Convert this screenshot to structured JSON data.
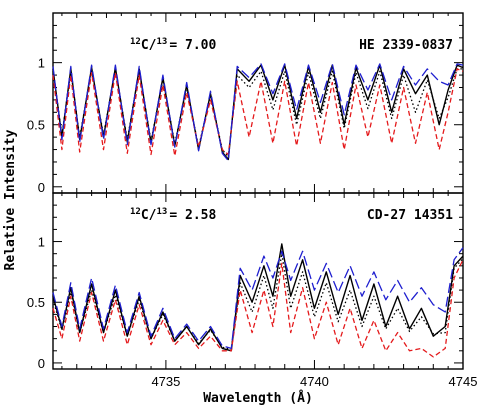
{
  "chart_data": {
    "type": "line",
    "xlabel": "Wavelength (Å)",
    "ylabel": "Relative Intensity",
    "xlim": [
      4731.2,
      4745.0
    ],
    "x_ticks": [
      4735,
      4740,
      4745
    ],
    "panels": [
      {
        "star": "HE 2339-0837",
        "ratio_text": "= 7.00",
        "ratio_prefix": "C/",
        "ratio_iso_a": "12",
        "ratio_iso_b": "13",
        "ylim": [
          -0.05,
          1.4
        ],
        "y_ticks": [
          0,
          0.5,
          1
        ],
        "y_tick_labels": [
          "0",
          "0.5",
          "1"
        ],
        "series": [
          {
            "style": "solid",
            "color": "#000000",
            "x": [
              4731.2,
              4731.5,
              4731.8,
              4732.1,
              4732.5,
              4732.9,
              4733.3,
              4733.7,
              4734.1,
              4734.5,
              4734.9,
              4735.3,
              4735.7,
              4736.1,
              4736.5,
              4736.9,
              4737.1,
              4737.4,
              4737.8,
              4738.2,
              4738.6,
              4739.0,
              4739.4,
              4739.8,
              4740.2,
              4740.6,
              4741.0,
              4741.4,
              4741.8,
              4742.2,
              4742.6,
              4743.0,
              4743.4,
              4743.8,
              4744.2,
              4744.5,
              4744.8,
              4745.0
            ],
            "y": [
              0.95,
              0.4,
              0.95,
              0.38,
              0.96,
              0.4,
              0.96,
              0.36,
              0.95,
              0.35,
              0.88,
              0.33,
              0.82,
              0.3,
              0.75,
              0.28,
              0.22,
              0.95,
              0.85,
              0.98,
              0.7,
              0.98,
              0.55,
              0.97,
              0.6,
              0.98,
              0.5,
              0.96,
              0.7,
              0.98,
              0.6,
              0.95,
              0.75,
              0.9,
              0.5,
              0.78,
              0.98,
              0.96
            ]
          },
          {
            "style": "dotted",
            "color": "#000000",
            "x": [
              4731.2,
              4731.5,
              4731.8,
              4732.1,
              4732.5,
              4732.9,
              4733.3,
              4733.7,
              4734.1,
              4734.5,
              4734.9,
              4735.3,
              4735.7,
              4736.1,
              4736.5,
              4736.9,
              4737.1,
              4737.4,
              4737.8,
              4738.2,
              4738.6,
              4739.0,
              4739.4,
              4739.8,
              4740.2,
              4740.6,
              4741.0,
              4741.4,
              4741.8,
              4742.2,
              4742.6,
              4743.0,
              4743.4,
              4743.8,
              4744.2,
              4744.5,
              4744.8,
              4745.0
            ],
            "y": [
              0.93,
              0.42,
              0.93,
              0.4,
              0.94,
              0.42,
              0.94,
              0.38,
              0.93,
              0.37,
              0.86,
              0.35,
              0.8,
              0.32,
              0.74,
              0.3,
              0.24,
              0.9,
              0.8,
              0.93,
              0.62,
              0.93,
              0.5,
              0.92,
              0.55,
              0.93,
              0.47,
              0.92,
              0.63,
              0.93,
              0.55,
              0.9,
              0.6,
              0.86,
              0.55,
              0.72,
              0.95,
              0.95
            ]
          },
          {
            "style": "dashed",
            "color": "#e41a1c",
            "x": [
              4731.2,
              4731.5,
              4731.8,
              4732.1,
              4732.5,
              4732.9,
              4733.3,
              4733.7,
              4734.1,
              4734.5,
              4734.9,
              4735.3,
              4735.7,
              4736.1,
              4736.5,
              4736.9,
              4737.1,
              4737.4,
              4737.8,
              4738.2,
              4738.6,
              4739.0,
              4739.4,
              4739.8,
              4740.2,
              4740.6,
              4741.0,
              4741.4,
              4741.8,
              4742.2,
              4742.6,
              4743.0,
              4743.4,
              4743.8,
              4744.2,
              4744.5,
              4744.8,
              4745.0
            ],
            "y": [
              0.9,
              0.3,
              0.9,
              0.28,
              0.92,
              0.3,
              0.92,
              0.27,
              0.9,
              0.26,
              0.82,
              0.25,
              0.76,
              0.32,
              0.7,
              0.3,
              0.26,
              0.85,
              0.4,
              0.85,
              0.35,
              0.85,
              0.33,
              0.84,
              0.35,
              0.84,
              0.3,
              0.82,
              0.4,
              0.82,
              0.35,
              0.8,
              0.35,
              0.76,
              0.3,
              0.6,
              0.95,
              0.93
            ]
          },
          {
            "style": "longdash",
            "color": "#1f1fcf",
            "x": [
              4731.2,
              4731.5,
              4731.8,
              4732.1,
              4732.5,
              4732.9,
              4733.3,
              4733.7,
              4734.1,
              4734.5,
              4734.9,
              4735.3,
              4735.7,
              4736.1,
              4736.5,
              4736.9,
              4737.1,
              4737.4,
              4737.8,
              4738.2,
              4738.6,
              4739.0,
              4739.4,
              4739.8,
              4740.2,
              4740.6,
              4741.0,
              4741.4,
              4741.8,
              4742.2,
              4742.6,
              4743.0,
              4743.4,
              4743.8,
              4744.2,
              4744.5,
              4744.8,
              4745.0
            ],
            "y": [
              0.97,
              0.38,
              0.97,
              0.36,
              0.98,
              0.38,
              0.98,
              0.34,
              0.97,
              0.34,
              0.9,
              0.32,
              0.84,
              0.29,
              0.77,
              0.27,
              0.21,
              0.97,
              0.88,
              0.99,
              0.75,
              0.99,
              0.62,
              0.98,
              0.68,
              0.99,
              0.58,
              0.98,
              0.78,
              0.99,
              0.7,
              0.97,
              0.82,
              0.95,
              0.85,
              0.82,
              0.99,
              0.98
            ]
          }
        ]
      },
      {
        "star": "CD-27 14351",
        "ratio_text": "= 2.58",
        "ratio_prefix": "C/",
        "ratio_iso_a": "12",
        "ratio_iso_b": "13",
        "ylim": [
          -0.05,
          1.4
        ],
        "y_ticks": [
          0,
          0.5,
          1
        ],
        "y_tick_labels": [
          "0",
          "0.5",
          "1"
        ],
        "series": [
          {
            "style": "solid",
            "color": "#000000",
            "x": [
              4731.2,
              4731.5,
              4731.8,
              4732.1,
              4732.5,
              4732.9,
              4733.3,
              4733.7,
              4734.1,
              4734.5,
              4734.9,
              4735.3,
              4735.7,
              4736.1,
              4736.5,
              4736.9,
              4737.2,
              4737.5,
              4737.9,
              4738.3,
              4738.6,
              4738.9,
              4739.2,
              4739.6,
              4740.0,
              4740.4,
              4740.8,
              4741.2,
              4741.6,
              4742.0,
              4742.4,
              4742.8,
              4743.2,
              4743.6,
              4744.0,
              4744.4,
              4744.7,
              4745.0
            ],
            "y": [
              0.55,
              0.28,
              0.62,
              0.25,
              0.65,
              0.25,
              0.6,
              0.22,
              0.55,
              0.2,
              0.42,
              0.18,
              0.3,
              0.15,
              0.28,
              0.12,
              0.1,
              0.72,
              0.5,
              0.8,
              0.55,
              0.98,
              0.55,
              0.85,
              0.45,
              0.75,
              0.4,
              0.72,
              0.35,
              0.65,
              0.3,
              0.55,
              0.28,
              0.45,
              0.22,
              0.3,
              0.8,
              0.88
            ]
          },
          {
            "style": "dotted",
            "color": "#000000",
            "x": [
              4731.2,
              4731.5,
              4731.8,
              4732.1,
              4732.5,
              4732.9,
              4733.3,
              4733.7,
              4734.1,
              4734.5,
              4734.9,
              4735.3,
              4735.7,
              4736.1,
              4736.5,
              4736.9,
              4737.2,
              4737.5,
              4737.9,
              4738.3,
              4738.6,
              4738.9,
              4739.2,
              4739.6,
              4740.0,
              4740.4,
              4740.8,
              4741.2,
              4741.6,
              4742.0,
              4742.4,
              4742.8,
              4743.2,
              4743.6,
              4744.0,
              4744.4,
              4744.7,
              4745.0
            ],
            "y": [
              0.52,
              0.27,
              0.58,
              0.25,
              0.6,
              0.25,
              0.56,
              0.22,
              0.52,
              0.2,
              0.4,
              0.18,
              0.3,
              0.16,
              0.27,
              0.13,
              0.11,
              0.66,
              0.42,
              0.72,
              0.45,
              0.9,
              0.45,
              0.75,
              0.38,
              0.66,
              0.34,
              0.6,
              0.3,
              0.55,
              0.28,
              0.45,
              0.26,
              0.38,
              0.24,
              0.25,
              0.78,
              0.86
            ]
          },
          {
            "style": "dashed",
            "color": "#e41a1c",
            "x": [
              4731.2,
              4731.5,
              4731.8,
              4732.1,
              4732.5,
              4732.9,
              4733.3,
              4733.7,
              4734.1,
              4734.5,
              4734.9,
              4735.3,
              4735.7,
              4736.1,
              4736.5,
              4736.9,
              4737.2,
              4737.5,
              4737.9,
              4738.3,
              4738.6,
              4738.9,
              4739.2,
              4739.6,
              4740.0,
              4740.4,
              4740.8,
              4741.2,
              4741.6,
              4742.0,
              4742.4,
              4742.8,
              4743.2,
              4743.6,
              4744.0,
              4744.4,
              4744.7,
              4745.0
            ],
            "y": [
              0.45,
              0.2,
              0.55,
              0.18,
              0.58,
              0.18,
              0.52,
              0.15,
              0.48,
              0.15,
              0.35,
              0.15,
              0.25,
              0.12,
              0.22,
              0.1,
              0.1,
              0.6,
              0.25,
              0.6,
              0.3,
              0.82,
              0.25,
              0.62,
              0.2,
              0.5,
              0.15,
              0.45,
              0.12,
              0.35,
              0.1,
              0.25,
              0.1,
              0.12,
              0.05,
              0.12,
              0.7,
              0.85
            ]
          },
          {
            "style": "longdash",
            "color": "#1f1fcf",
            "x": [
              4731.2,
              4731.5,
              4731.8,
              4732.1,
              4732.5,
              4732.9,
              4733.3,
              4733.7,
              4734.1,
              4734.5,
              4734.9,
              4735.3,
              4735.7,
              4736.1,
              4736.5,
              4736.9,
              4737.2,
              4737.5,
              4737.9,
              4738.3,
              4738.6,
              4738.9,
              4739.2,
              4739.6,
              4740.0,
              4740.4,
              4740.8,
              4741.2,
              4741.6,
              4742.0,
              4742.4,
              4742.8,
              4743.2,
              4743.6,
              4744.0,
              4744.4,
              4744.7,
              4745.0
            ],
            "y": [
              0.58,
              0.3,
              0.66,
              0.28,
              0.7,
              0.28,
              0.64,
              0.25,
              0.58,
              0.22,
              0.45,
              0.2,
              0.32,
              0.18,
              0.3,
              0.14,
              0.12,
              0.78,
              0.6,
              0.88,
              0.7,
              0.92,
              0.68,
              0.92,
              0.6,
              0.82,
              0.58,
              0.8,
              0.55,
              0.75,
              0.52,
              0.68,
              0.5,
              0.62,
              0.48,
              0.42,
              0.85,
              0.95
            ]
          }
        ]
      }
    ]
  }
}
